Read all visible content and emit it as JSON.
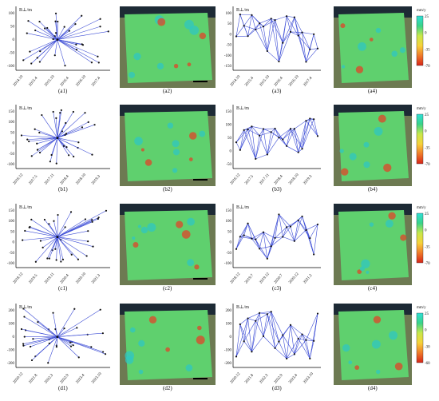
{
  "figure": {
    "rows": [
      {
        "baseline_plot": {
          "ylabel": "B⊥/m",
          "yticks": [
            "100",
            "50",
            "0",
            "-50",
            "-100"
          ],
          "xticks": [
            "2014.10",
            "2015.4",
            "2015.10",
            "2016.4",
            "2016.10",
            "2017.4"
          ],
          "caption": "(a1)"
        },
        "map_caption": "(a2)",
        "network_plot": {
          "ylabel": "B⊥/m",
          "yticks": [
            "100",
            "50",
            "0",
            "-50",
            "-100",
            "-150"
          ],
          "xticks": [
            "2014.10",
            "2015.4",
            "2015.10",
            "2016.4",
            "2016.10",
            "2017.4"
          ],
          "caption": "(a3)"
        },
        "velocity_map": {
          "caption": "(a4)",
          "colorbar_unit": "mm/y",
          "colorbar_ticks": [
            "25",
            "0",
            "-35",
            "-70"
          ]
        }
      },
      {
        "baseline_plot": {
          "ylabel": "B⊥/m",
          "yticks": [
            "150",
            "100",
            "50",
            "0",
            "-50",
            "-100"
          ],
          "xticks": [
            "2016.12",
            "2017.5",
            "2017.11",
            "2018.4",
            "2018.10",
            "2019.3"
          ],
          "caption": "(b1)"
        },
        "map_caption": "(b2)",
        "network_plot": {
          "ylabel": "B⊥/m",
          "yticks": [
            "150",
            "100",
            "50",
            "0",
            "-50"
          ],
          "xticks": [
            "2016.12",
            "2017.5",
            "2017.11",
            "2018.4",
            "2018.10",
            "2019.3"
          ],
          "caption": "(b3)"
        },
        "velocity_map": {
          "caption": "(b4)",
          "colorbar_unit": "mm/y",
          "colorbar_ticks": [
            "25",
            "0",
            "-35",
            "-70"
          ]
        }
      },
      {
        "baseline_plot": {
          "ylabel": "B⊥/m",
          "yticks": [
            "150",
            "100",
            "50",
            "0",
            "-50",
            "-100"
          ],
          "xticks": [
            "2018.12",
            "2019.5",
            "2019.11",
            "2020.4",
            "2020.10",
            "2021.3"
          ],
          "caption": "(c1)"
        },
        "map_caption": "(c2)",
        "network_plot": {
          "ylabel": "B⊥/m",
          "yticks": [
            "150",
            "100",
            "50",
            "0",
            "-50",
            "-100"
          ],
          "xticks": [
            "2018.12",
            "2019.7",
            "2019.12",
            "2020.7",
            "2020.12",
            "2021.2"
          ],
          "caption": "(c3)"
        },
        "velocity_map": {
          "caption": "(c4)",
          "colorbar_unit": "mm/y",
          "colorbar_ticks": [
            "25",
            "0",
            "-35",
            "-70"
          ]
        }
      },
      {
        "baseline_plot": {
          "ylabel": "B⊥/m",
          "yticks": [
            "200",
            "100",
            "0",
            "-100",
            "-200"
          ],
          "xticks": [
            "2020.12",
            "2021.8",
            "2022.3",
            "2022.9",
            "2023.4",
            "2023.10"
          ],
          "caption": "(d1)"
        },
        "map_caption": "(d2)",
        "network_plot": {
          "ylabel": "B⊥/m",
          "yticks": [
            "200",
            "100",
            "0",
            "-100",
            "-200"
          ],
          "xticks": [
            "2020.12",
            "2021.8",
            "2022.3",
            "2022.9",
            "2023.4",
            "2023.10"
          ],
          "caption": "(d3)"
        },
        "velocity_map": {
          "caption": "(d4)",
          "colorbar_unit": "mm/y",
          "colorbar_ticks": [
            "25",
            "0",
            "-30",
            "-60"
          ]
        }
      }
    ]
  },
  "colors": {
    "line": "#3f4fd6",
    "point": "#111111",
    "colorbar": [
      "#2fe0d8",
      "#39d38a",
      "#c8e84a",
      "#f7d23a",
      "#f07a2a",
      "#d62418"
    ]
  }
}
